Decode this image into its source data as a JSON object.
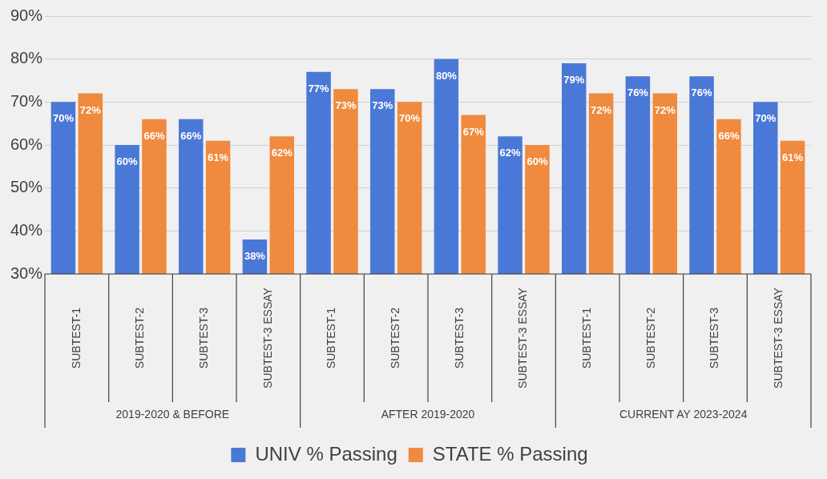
{
  "chart_data": {
    "type": "bar",
    "categories": [
      "SUBTEST-1",
      "SUBTEST-2",
      "SUBTEST-3",
      "SUBTEST-3 ESSAY",
      "SUBTEST-1",
      "SUBTEST-2",
      "SUBTEST-3",
      "SUBTEST-3 ESSAY",
      "SUBTEST-1",
      "SUBTEST-2",
      "SUBTEST-3",
      "SUBTEST-3 ESSAY"
    ],
    "annotations": [
      "2019-2020 & BEFORE",
      "AFTER 2019-2020",
      "CURRENT AY 2023-2024"
    ],
    "series": [
      {
        "name": "UNIV % Passing",
        "color": "#4a78d6",
        "values": [
          70,
          60,
          66,
          38,
          77,
          73,
          80,
          62,
          79,
          76,
          76,
          70
        ],
        "value_labels": [
          "70%",
          "60%",
          "66%",
          "38%",
          "77%",
          "73%",
          "80%",
          "62%",
          "79%",
          "76%",
          "76%",
          "70%"
        ]
      },
      {
        "name": "STATE % Passing",
        "color": "#f08a3e",
        "values": [
          72,
          66,
          61,
          62,
          73,
          70,
          67,
          60,
          72,
          72,
          66,
          61
        ],
        "value_labels": [
          "72%",
          "66%",
          "61%",
          "62%",
          "73%",
          "70%",
          "67%",
          "60%",
          "72%",
          "72%",
          "66%",
          "61%"
        ]
      }
    ],
    "ylim": [
      30,
      90
    ],
    "yticks": [
      {
        "value": 30,
        "label": "30%"
      },
      {
        "value": 40,
        "label": "40%"
      },
      {
        "value": 50,
        "label": "50%"
      },
      {
        "value": 60,
        "label": "60%"
      },
      {
        "value": 70,
        "label": "70%"
      },
      {
        "value": 80,
        "label": "80%"
      },
      {
        "value": 90,
        "label": "90%"
      }
    ],
    "grid": "y",
    "legend": "bottom"
  }
}
